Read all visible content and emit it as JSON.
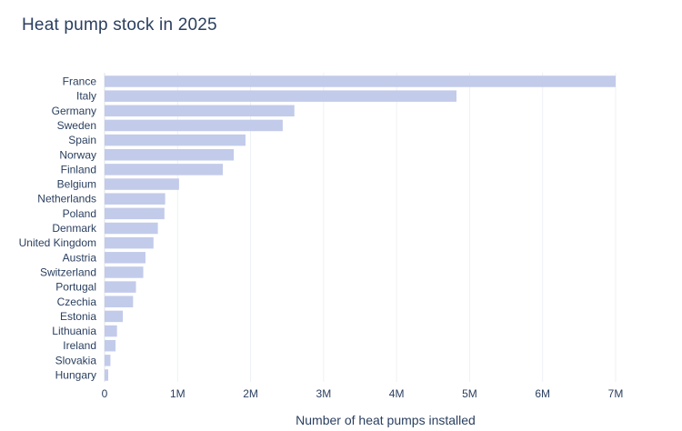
{
  "chart_data": {
    "type": "bar",
    "orientation": "horizontal",
    "title": "Heat pump stock in 2025",
    "xlabel": "Number of heat pumps installed",
    "ylabel": "",
    "xlim": [
      0,
      7000000
    ],
    "x_ticks": [
      0,
      1000000,
      2000000,
      3000000,
      4000000,
      5000000,
      6000000,
      7000000
    ],
    "x_tick_labels": [
      "0",
      "1M",
      "2M",
      "3M",
      "4M",
      "5M",
      "6M",
      "7M"
    ],
    "grid": true,
    "legend": "none",
    "bar_color": "#c2cbea",
    "categories": [
      "France",
      "Italy",
      "Germany",
      "Sweden",
      "Spain",
      "Norway",
      "Finland",
      "Belgium",
      "Netherlands",
      "Poland",
      "Denmark",
      "United Kingdom",
      "Austria",
      "Switzerland",
      "Portugal",
      "Czechia",
      "Estonia",
      "Lithuania",
      "Ireland",
      "Slovakia",
      "Hungary"
    ],
    "values": [
      7000000,
      4820000,
      2600000,
      2440000,
      1930000,
      1770000,
      1620000,
      1020000,
      830000,
      820000,
      730000,
      670000,
      560000,
      530000,
      430000,
      390000,
      250000,
      170000,
      150000,
      80000,
      50000
    ]
  }
}
